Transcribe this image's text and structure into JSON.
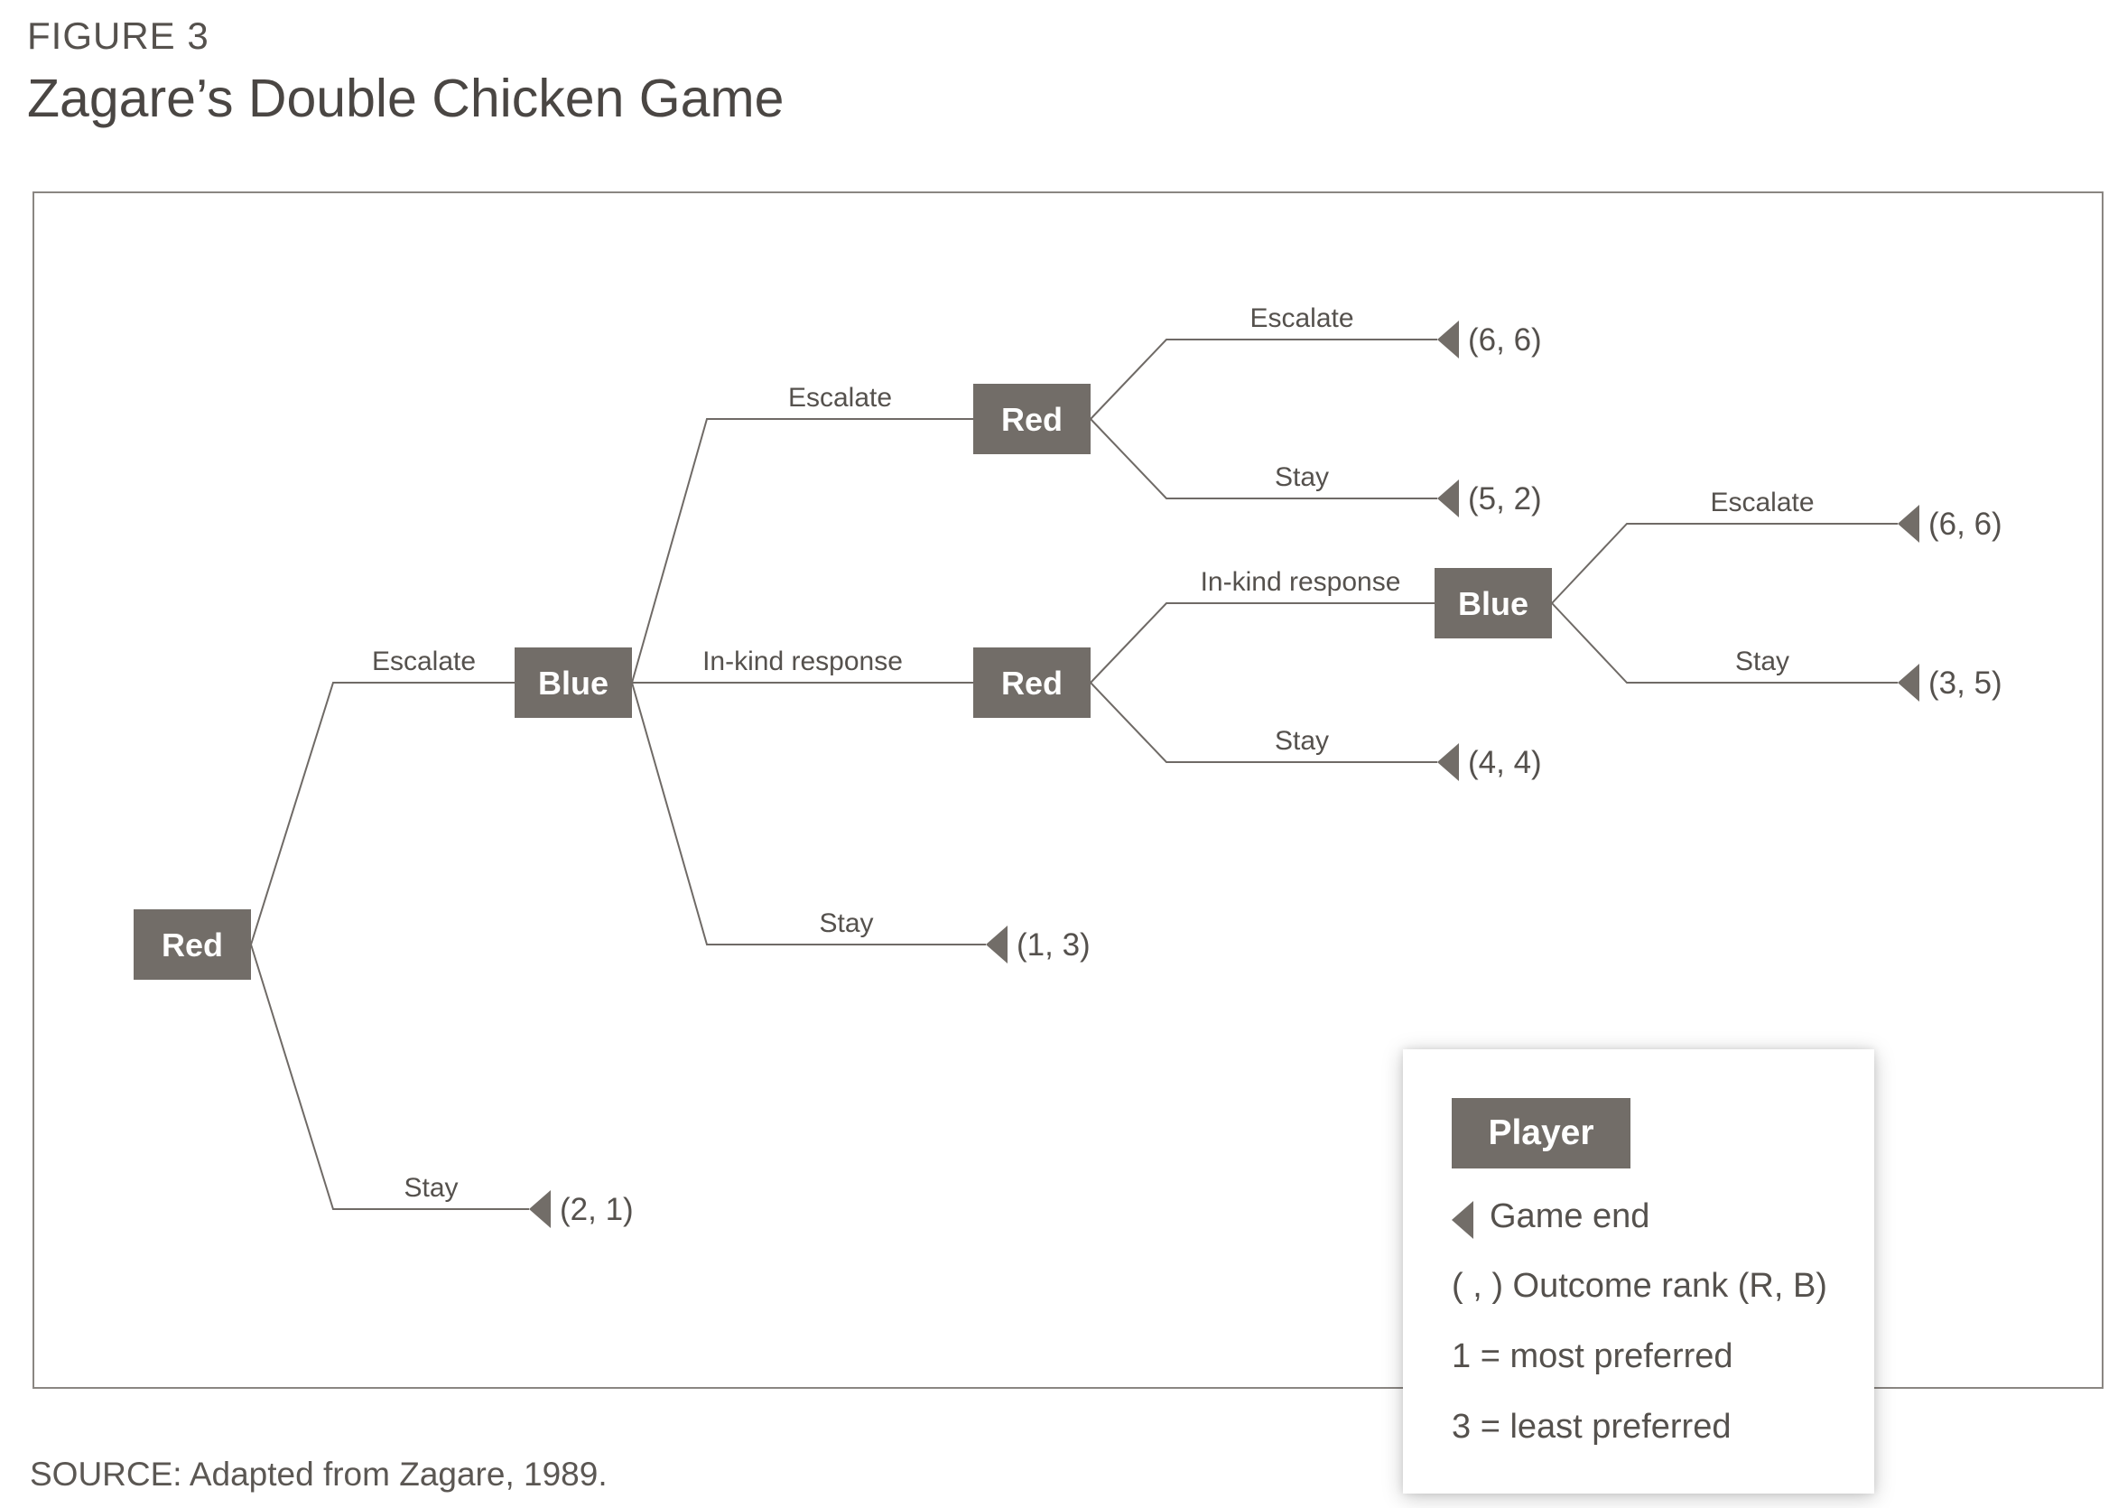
{
  "figure": {
    "label": "FIGURE 3",
    "title": "Zagare’s Double Chicken Game",
    "source": "SOURCE: Adapted from Zagare, 1989."
  },
  "colors": {
    "node_fill": "#726d68",
    "node_text": "#ffffff",
    "line": "#6f6a66",
    "text": "#55514d"
  },
  "tree": {
    "nodes": [
      {
        "id": "n0",
        "label": "Red"
      },
      {
        "id": "n1",
        "label": "Blue"
      },
      {
        "id": "n2",
        "label": "Red"
      },
      {
        "id": "n3",
        "label": "Red"
      },
      {
        "id": "n4",
        "label": "Blue"
      }
    ],
    "edges": [
      {
        "from": "n0",
        "to": "n1",
        "label": "Escalate"
      },
      {
        "from": "n0",
        "to": "o_21",
        "label": "Stay"
      },
      {
        "from": "n1",
        "to": "n2",
        "label": "Escalate"
      },
      {
        "from": "n1",
        "to": "n3",
        "label": "In-kind response"
      },
      {
        "from": "n1",
        "to": "o_13",
        "label": "Stay"
      },
      {
        "from": "n2",
        "to": "o_66a",
        "label": "Escalate"
      },
      {
        "from": "n2",
        "to": "o_52",
        "label": "Stay"
      },
      {
        "from": "n3",
        "to": "n4",
        "label": "In-kind response"
      },
      {
        "from": "n3",
        "to": "o_44",
        "label": "Stay"
      },
      {
        "from": "n4",
        "to": "o_66b",
        "label": "Escalate"
      },
      {
        "from": "n4",
        "to": "o_35",
        "label": "Stay"
      }
    ],
    "outcomes": [
      {
        "id": "o_66a",
        "label": "(6, 6)"
      },
      {
        "id": "o_52",
        "label": "(5, 2)"
      },
      {
        "id": "o_66b",
        "label": "(6, 6)"
      },
      {
        "id": "o_35",
        "label": "(3, 5)"
      },
      {
        "id": "o_44",
        "label": "(4, 4)"
      },
      {
        "id": "o_13",
        "label": "(1, 3)"
      },
      {
        "id": "o_21",
        "label": "(2, 1)"
      }
    ]
  },
  "legend": {
    "player": "Player",
    "game_end": "Game end",
    "outcome_rank": "( , ) Outcome rank (R, B)",
    "most": "1 = most preferred",
    "least": "3 = least preferred"
  }
}
